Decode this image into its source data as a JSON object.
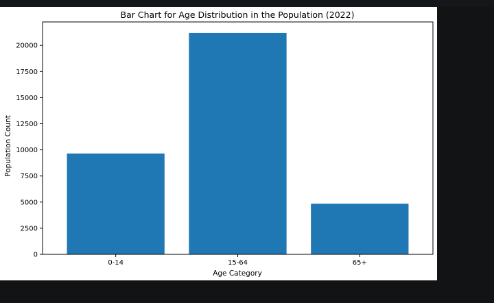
{
  "chart_data": {
    "type": "bar",
    "title": "Bar Chart for Age Distribution in the Population (2022)",
    "xlabel": "Age Category",
    "ylabel": "Population Count",
    "categories": [
      "0-14",
      "15-64",
      "65+"
    ],
    "values": [
      9650,
      21200,
      4850
    ],
    "ylim": [
      0,
      22245
    ],
    "yticks": [
      0,
      2500,
      5000,
      7500,
      10000,
      12500,
      15000,
      17500,
      20000
    ],
    "ytick_labels": [
      "0",
      "2500",
      "5000",
      "7500",
      "10000",
      "12500",
      "15000",
      "17500",
      "20000"
    ],
    "bar_color": "#1f77b4",
    "grid": false,
    "legend": "none"
  }
}
